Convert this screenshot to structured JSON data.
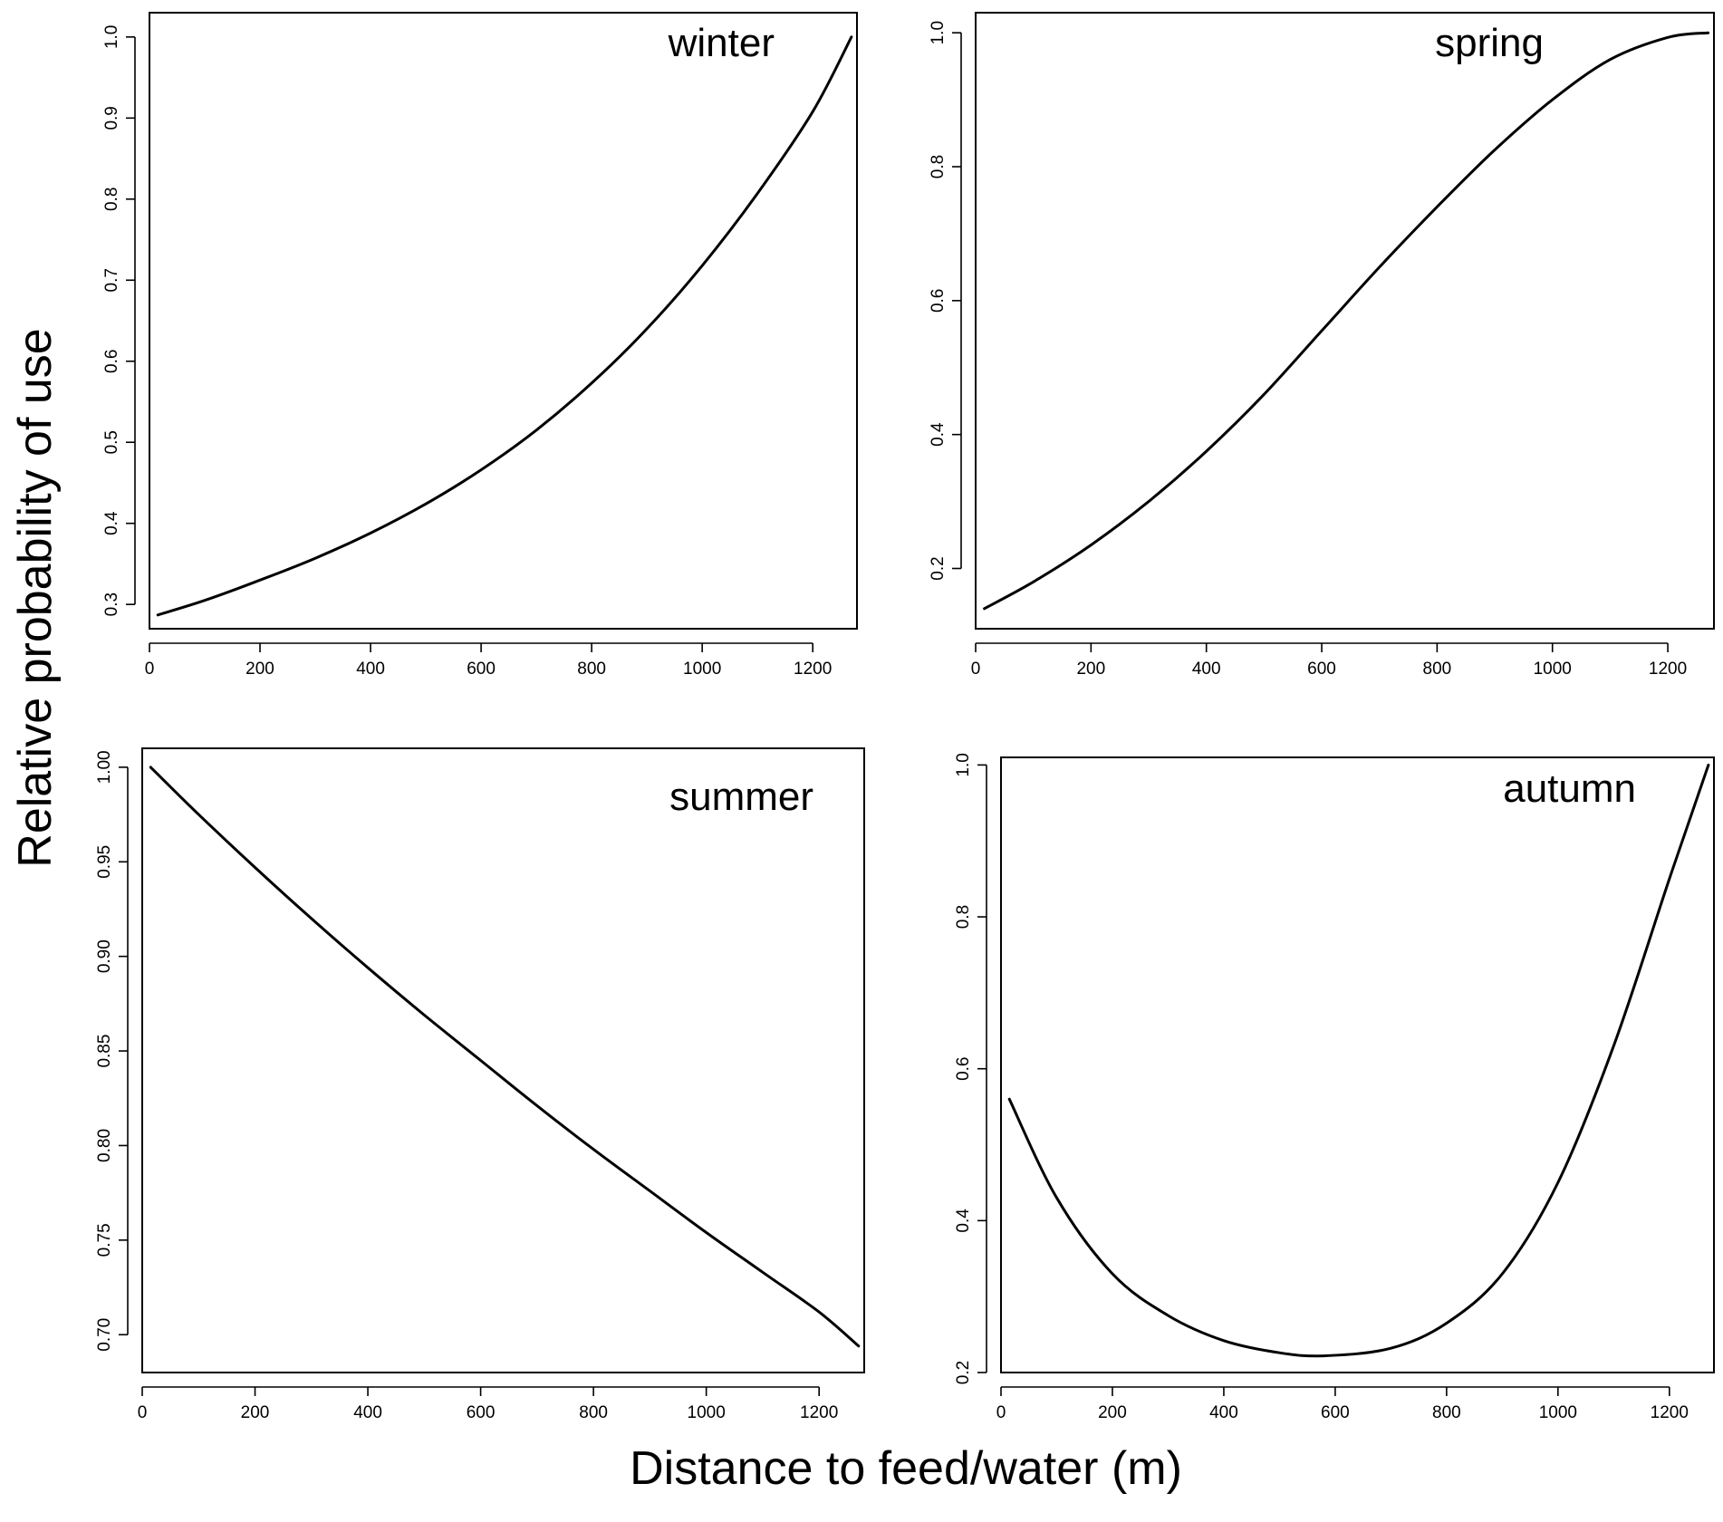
{
  "ylabel": "Relative probability of use",
  "xlabel": "Distance to feed/water (m)",
  "chart_data": [
    {
      "type": "line",
      "title": "winter",
      "xlim": [
        0,
        1280
      ],
      "ylim": [
        0.27,
        1.03
      ],
      "xticks": [
        0,
        200,
        400,
        600,
        800,
        1000,
        1200
      ],
      "xtick_labels": [
        "0",
        "200",
        "400",
        "600",
        "800",
        "1000",
        "1200"
      ],
      "yticks": [
        0.3,
        0.4,
        0.5,
        0.6,
        0.7,
        0.8,
        0.9,
        1.0
      ],
      "ytick_labels": [
        "0.3",
        "0.4",
        "0.5",
        "0.6",
        "0.7",
        "0.8",
        "0.9",
        "1.0"
      ],
      "x": [
        15,
        100,
        200,
        300,
        400,
        500,
        600,
        700,
        800,
        900,
        1000,
        1100,
        1200,
        1270
      ],
      "y": [
        0.287,
        0.305,
        0.33,
        0.357,
        0.388,
        0.424,
        0.466,
        0.515,
        0.573,
        0.64,
        0.718,
        0.807,
        0.908,
        1.0
      ]
    },
    {
      "type": "line",
      "title": "spring",
      "xlim": [
        0,
        1280
      ],
      "ylim": [
        0.11,
        1.03
      ],
      "xticks": [
        0,
        200,
        400,
        600,
        800,
        1000,
        1200
      ],
      "xtick_labels": [
        "0",
        "200",
        "400",
        "600",
        "800",
        "1000",
        "1200"
      ],
      "yticks": [
        0.2,
        0.4,
        0.6,
        0.8,
        1.0
      ],
      "ytick_labels": [
        "0.2",
        "0.4",
        "0.6",
        "0.8",
        "1.0"
      ],
      "x": [
        15,
        100,
        200,
        300,
        400,
        500,
        600,
        700,
        800,
        900,
        1000,
        1100,
        1200,
        1270
      ],
      "y": [
        0.14,
        0.18,
        0.235,
        0.3,
        0.375,
        0.46,
        0.555,
        0.65,
        0.74,
        0.825,
        0.9,
        0.96,
        0.993,
        1.0
      ]
    },
    {
      "type": "line",
      "title": "summer",
      "xlim": [
        0,
        1280
      ],
      "ylim": [
        0.68,
        1.01
      ],
      "xticks": [
        0,
        200,
        400,
        600,
        800,
        1000,
        1200
      ],
      "xtick_labels": [
        "0",
        "200",
        "400",
        "600",
        "800",
        "1000",
        "1200"
      ],
      "yticks": [
        0.7,
        0.75,
        0.8,
        0.85,
        0.9,
        0.95,
        1.0
      ],
      "ytick_labels": [
        "0.70",
        "0.75",
        "0.80",
        "0.85",
        "0.90",
        "0.95",
        "1.00"
      ],
      "x": [
        15,
        100,
        200,
        300,
        400,
        500,
        600,
        700,
        800,
        900,
        1000,
        1100,
        1200,
        1270
      ],
      "y": [
        1.0,
        0.975,
        0.947,
        0.92,
        0.894,
        0.869,
        0.845,
        0.821,
        0.798,
        0.776,
        0.754,
        0.733,
        0.712,
        0.694
      ]
    },
    {
      "type": "line",
      "title": "autumn",
      "xlim": [
        0,
        1280
      ],
      "ylim": [
        0.2,
        1.01
      ],
      "xticks": [
        0,
        200,
        400,
        600,
        800,
        1000,
        1200
      ],
      "xtick_labels": [
        "0",
        "200",
        "400",
        "600",
        "800",
        "1000",
        "1200"
      ],
      "yticks": [
        0.2,
        0.4,
        0.6,
        0.8,
        1.0
      ],
      "ytick_labels": [
        "0.2",
        "0.4",
        "0.6",
        "0.8",
        "1.0"
      ],
      "x": [
        15,
        100,
        200,
        300,
        400,
        500,
        580,
        700,
        800,
        900,
        1000,
        1100,
        1200,
        1270
      ],
      "y": [
        0.56,
        0.43,
        0.33,
        0.275,
        0.242,
        0.226,
        0.222,
        0.232,
        0.265,
        0.33,
        0.45,
        0.63,
        0.85,
        1.0
      ]
    }
  ]
}
